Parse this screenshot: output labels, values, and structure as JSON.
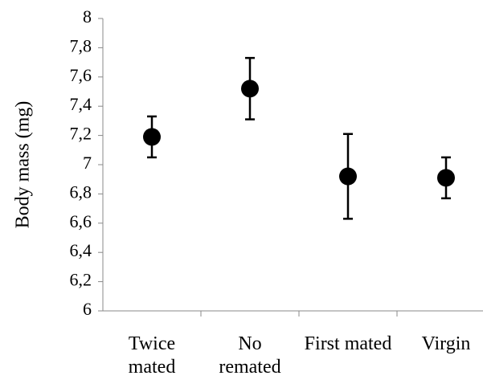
{
  "chart_data": {
    "type": "dot",
    "y_label": "Body mass (mg)",
    "categories": [
      "Twice mated",
      "No remated",
      "First mated",
      "Virgin"
    ],
    "values": [
      7.19,
      7.52,
      6.92,
      6.91
    ],
    "errors": [
      0.14,
      0.21,
      0.29,
      0.14
    ],
    "color": "#000000",
    "ylim": [
      6,
      8
    ],
    "yticks": [
      6,
      {
        "value": 6.2,
        "label": "6,2"
      },
      {
        "value": 6.4,
        "label": "6,4"
      },
      {
        "value": 6.6,
        "label": "6,6"
      },
      {
        "value": 6.8,
        "label": "6,8"
      },
      7,
      {
        "value": 7.2,
        "label": "7,2"
      },
      {
        "value": 7.4,
        "label": "7,4"
      },
      {
        "value": 7.6,
        "label": "7,6"
      },
      {
        "value": 7.8,
        "label": "7,8"
      },
      8
    ],
    "grid": false
  }
}
